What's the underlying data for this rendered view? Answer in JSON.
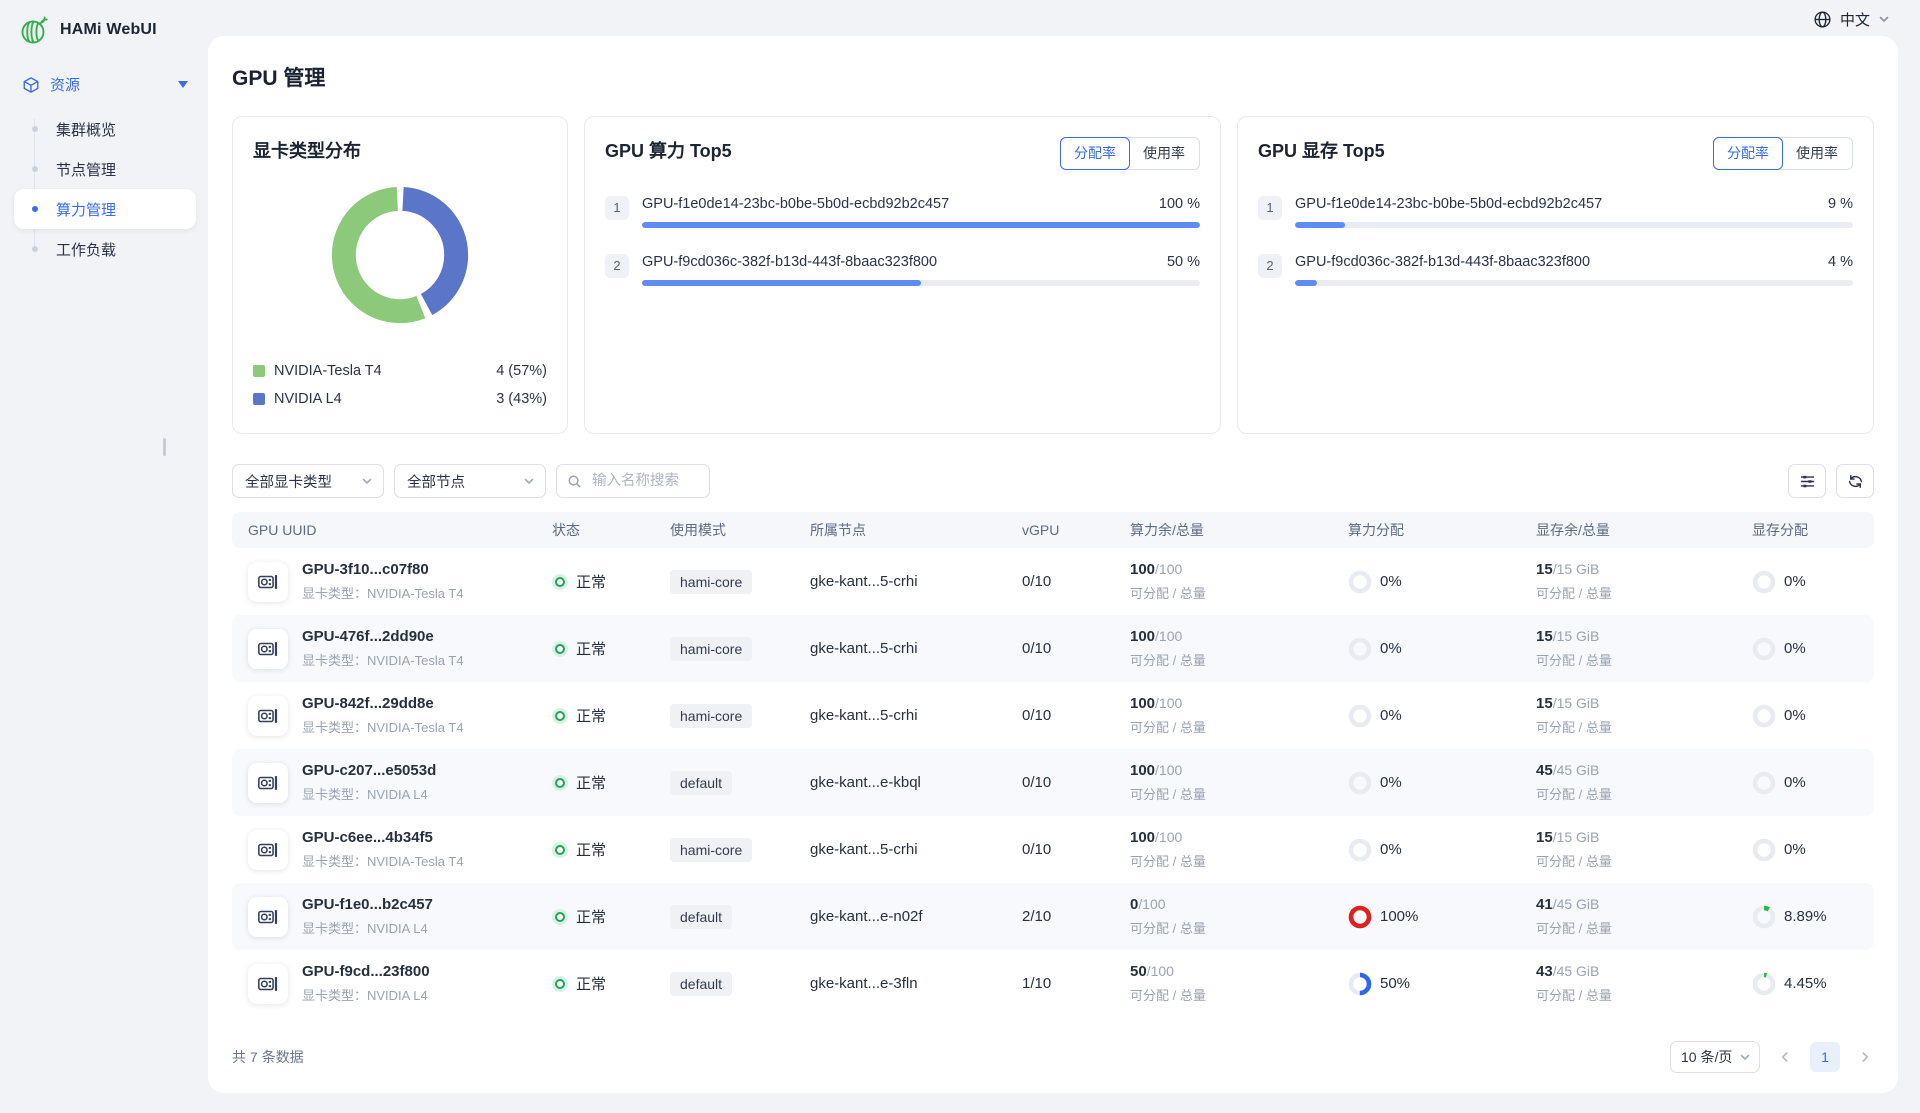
{
  "app": {
    "title": "HAMi WebUI",
    "language": "中文"
  },
  "sidebar": {
    "group": {
      "label": "资源"
    },
    "items": [
      {
        "label": "集群概览",
        "active": false
      },
      {
        "label": "节点管理",
        "active": false
      },
      {
        "label": "算力管理",
        "active": true
      },
      {
        "label": "工作负载",
        "active": false
      }
    ]
  },
  "page": {
    "title": "GPU 管理"
  },
  "cards": {
    "distribution": {
      "title": "显卡类型分布"
    },
    "compute_top5": {
      "title": "GPU 算力 Top5",
      "tabs": [
        "分配率",
        "使用率"
      ],
      "active_tab": "分配率",
      "items": [
        {
          "rank": "1",
          "name": "GPU-f1e0de14-23bc-b0be-5b0d-ecbd92b2c457",
          "value": "100 %",
          "pct": 100
        },
        {
          "rank": "2",
          "name": "GPU-f9cd036c-382f-b13d-443f-8baac323f800",
          "value": "50 %",
          "pct": 50
        }
      ]
    },
    "memory_top5": {
      "title": "GPU 显存 Top5",
      "tabs": [
        "分配率",
        "使用率"
      ],
      "active_tab": "分配率",
      "items": [
        {
          "rank": "1",
          "name": "GPU-f1e0de14-23bc-b0be-5b0d-ecbd92b2c457",
          "value": "9 %",
          "pct": 9
        },
        {
          "rank": "2",
          "name": "GPU-f9cd036c-382f-b13d-443f-8baac323f800",
          "value": "4 %",
          "pct": 4
        }
      ]
    }
  },
  "chart_data": {
    "type": "pie",
    "title": "显卡类型分布",
    "labels": [
      "NVIDIA-Tesla T4",
      "NVIDIA L4"
    ],
    "values": [
      4,
      3
    ],
    "percents": [
      57,
      43
    ],
    "colors": [
      "#8cc97a",
      "#5b75c9"
    ],
    "slice_order": [
      1,
      0
    ],
    "inner_radius_ratio": 0.7,
    "legend": [
      {
        "label": "NVIDIA-Tesla T4",
        "value": "4 (57%)",
        "color": "#8cc97a"
      },
      {
        "label": "NVIDIA L4",
        "value": "3 (43%)",
        "color": "#5b75c9"
      }
    ]
  },
  "filters": {
    "gpu_type": "全部显卡类型",
    "node": "全部节点",
    "search_placeholder": "输入名称搜索"
  },
  "table": {
    "columns": [
      "GPU UUID",
      "状态",
      "使用模式",
      "所属节点",
      "vGPU",
      "算力余/总量",
      "算力分配",
      "显存余/总量",
      "显存分配"
    ],
    "type_prefix": "显卡类型：",
    "sub_caption": "可分配 / 总量",
    "gauge_colors": {
      "red": "#e02020",
      "blue": "#2e68e8",
      "green": "#2cb44f",
      "idle": "#e8ebf0"
    },
    "rows": [
      {
        "name": "GPU-3f10...c07f80",
        "type": "NVIDIA-Tesla T4",
        "status": "正常",
        "mode": "hami-core",
        "node": "gke-kant...5-crhi",
        "vgpu": "0/10",
        "compute_free": "100",
        "compute_total": "/100",
        "compute_pct": "0%",
        "compute_ratio": 0,
        "compute_color": "",
        "mem_free": "15",
        "mem_total": "/15 GiB",
        "mem_pct": "0%",
        "mem_ratio": 0,
        "mem_color": ""
      },
      {
        "name": "GPU-476f...2dd90e",
        "type": "NVIDIA-Tesla T4",
        "status": "正常",
        "mode": "hami-core",
        "node": "gke-kant...5-crhi",
        "vgpu": "0/10",
        "compute_free": "100",
        "compute_total": "/100",
        "compute_pct": "0%",
        "compute_ratio": 0,
        "compute_color": "",
        "mem_free": "15",
        "mem_total": "/15 GiB",
        "mem_pct": "0%",
        "mem_ratio": 0,
        "mem_color": ""
      },
      {
        "name": "GPU-842f...29dd8e",
        "type": "NVIDIA-Tesla T4",
        "status": "正常",
        "mode": "hami-core",
        "node": "gke-kant...5-crhi",
        "vgpu": "0/10",
        "compute_free": "100",
        "compute_total": "/100",
        "compute_pct": "0%",
        "compute_ratio": 0,
        "compute_color": "",
        "mem_free": "15",
        "mem_total": "/15 GiB",
        "mem_pct": "0%",
        "mem_ratio": 0,
        "mem_color": ""
      },
      {
        "name": "GPU-c207...e5053d",
        "type": "NVIDIA L4",
        "status": "正常",
        "mode": "default",
        "node": "gke-kant...e-kbql",
        "vgpu": "0/10",
        "compute_free": "100",
        "compute_total": "/100",
        "compute_pct": "0%",
        "compute_ratio": 0,
        "compute_color": "",
        "mem_free": "45",
        "mem_total": "/45 GiB",
        "mem_pct": "0%",
        "mem_ratio": 0,
        "mem_color": ""
      },
      {
        "name": "GPU-c6ee...4b34f5",
        "type": "NVIDIA-Tesla T4",
        "status": "正常",
        "mode": "hami-core",
        "node": "gke-kant...5-crhi",
        "vgpu": "0/10",
        "compute_free": "100",
        "compute_total": "/100",
        "compute_pct": "0%",
        "compute_ratio": 0,
        "compute_color": "",
        "mem_free": "15",
        "mem_total": "/15 GiB",
        "mem_pct": "0%",
        "mem_ratio": 0,
        "mem_color": ""
      },
      {
        "name": "GPU-f1e0...b2c457",
        "type": "NVIDIA L4",
        "status": "正常",
        "mode": "default",
        "node": "gke-kant...e-n02f",
        "vgpu": "2/10",
        "compute_free": "0",
        "compute_total": "/100",
        "compute_pct": "100%",
        "compute_ratio": 100,
        "compute_color": "#e02020",
        "mem_free": "41",
        "mem_total": "/45 GiB",
        "mem_pct": "8.89%",
        "mem_ratio": 8.89,
        "mem_color": "#2cb44f"
      },
      {
        "name": "GPU-f9cd...23f800",
        "type": "NVIDIA L4",
        "status": "正常",
        "mode": "default",
        "node": "gke-kant...e-3fln",
        "vgpu": "1/10",
        "compute_free": "50",
        "compute_total": "/100",
        "compute_pct": "50%",
        "compute_ratio": 50,
        "compute_color": "#2e68e8",
        "mem_free": "43",
        "mem_total": "/45 GiB",
        "mem_pct": "4.45%",
        "mem_ratio": 4.45,
        "mem_color": "#2cb44f"
      }
    ]
  },
  "footer": {
    "total": "共 7 条数据",
    "page_size": "10 条/页",
    "page": "1"
  }
}
